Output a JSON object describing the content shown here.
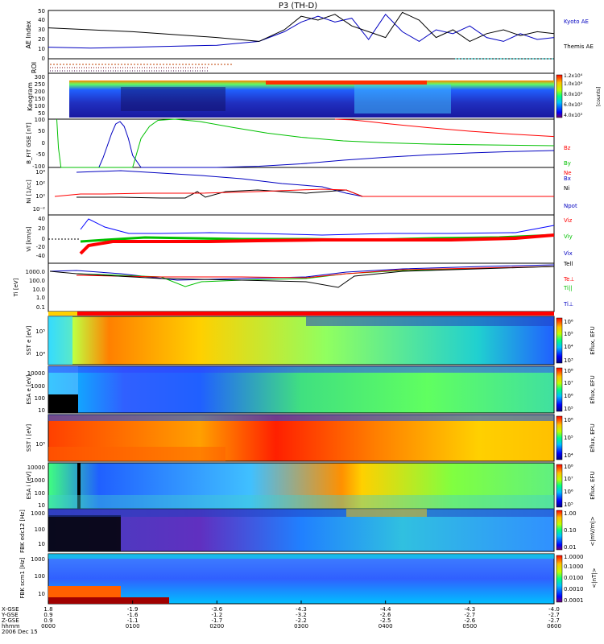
{
  "title": "P3 (TH-D)",
  "colors": {
    "red": "#ff0000",
    "green": "#00c000",
    "blue": "#0000c0",
    "black": "#000000",
    "cyan": "#00c0c0"
  },
  "chart_data": {
    "type": "line",
    "title": "P3 (TH-D)",
    "xticks": [
      "0000",
      "0100",
      "0200",
      "0300",
      "0400",
      "0500",
      "0600"
    ],
    "xrange_hours": [
      0,
      6
    ],
    "footer_rows": {
      "labels": [
        "X-GSE",
        "Y-GSE",
        "Z-GSE",
        "hhmm",
        "2006 Dec 15"
      ],
      "x": [
        "1.8",
        "-1.9",
        "-3.6",
        "-4.3",
        "-4.4",
        "-4.3",
        "-4.0"
      ],
      "y": [
        "0.9",
        "-1.6",
        "-1.2",
        "-3.2",
        "-2.6",
        "-2.7",
        "-2.7"
      ],
      "z": [
        "0.9",
        "-1.1",
        "-1.7",
        "-2.2",
        "-2.5",
        "-2.6",
        "-2.7"
      ]
    },
    "panels": [
      {
        "id": "ae",
        "ylabel": "AE Index",
        "ylim": [
          0,
          50
        ],
        "yticks": [
          "0",
          "10",
          "20",
          "30",
          "40",
          "50"
        ],
        "right_labels": [
          {
            "text": "Kyoto AE",
            "color": "#0000c0"
          },
          {
            "text": "Themis AE",
            "color": "#000000"
          }
        ],
        "series": [
          {
            "name": "Kyoto AE",
            "color": "#0000c0",
            "x": [
              0,
              0.5,
              1,
              1.5,
              2,
              2.5,
              2.8,
              3.0,
              3.2,
              3.4,
              3.6,
              3.8,
              4.0,
              4.2,
              4.4,
              4.6,
              4.8,
              5.0,
              5.2,
              5.4,
              5.6,
              5.8,
              6.0
            ],
            "y": [
              12,
              11,
              12,
              13,
              14,
              18,
              28,
              38,
              44,
              38,
              42,
              20,
              46,
              28,
              18,
              30,
              26,
              34,
              22,
              18,
              26,
              20,
              22
            ]
          },
          {
            "name": "Themis AE",
            "color": "#000000",
            "x": [
              0,
              0.5,
              1,
              1.5,
              2,
              2.5,
              2.8,
              3.0,
              3.2,
              3.4,
              3.6,
              3.8,
              4.0,
              4.2,
              4.4,
              4.6,
              4.8,
              5.0,
              5.2,
              5.4,
              5.6,
              5.8,
              6.0
            ],
            "y": [
              32,
              30,
              28,
              25,
              22,
              18,
              30,
              44,
              40,
              46,
              34,
              28,
              22,
              48,
              40,
              22,
              30,
              18,
              26,
              30,
              24,
              28,
              26
            ]
          }
        ]
      },
      {
        "id": "roi",
        "ylabel": "ROI"
      },
      {
        "id": "keogram",
        "ylabel": "Keogram",
        "ylim": [
          0,
          300
        ],
        "yticks": [
          "50",
          "100",
          "150",
          "200",
          "250",
          "300"
        ],
        "colorbar": {
          "ticks": [
            "4.0x10³",
            "6.0x10³",
            "8.0x10³",
            "1.0x10⁴",
            "1.2x10⁴"
          ],
          "label": "[counts]"
        }
      },
      {
        "id": "bfit",
        "ylabel": "B_FIT GSE [nT]",
        "ylim": [
          -100,
          100
        ],
        "yticks": [
          "-100",
          "-50",
          "0",
          "50",
          "100"
        ],
        "right_labels": [
          {
            "text": "Bz",
            "color": "#ff0000"
          },
          {
            "text": "By",
            "color": "#00c000"
          },
          {
            "text": "Bx",
            "color": "#0000c0"
          }
        ],
        "series": [
          {
            "name": "Bx",
            "color": "#0000c0",
            "x": [
              0.6,
              0.65,
              0.7,
              0.75,
              0.8,
              0.85,
              0.9,
              0.95,
              1.0,
              1.1,
              1.3,
              1.6,
              2.0,
              2.5,
              3.0,
              3.5,
              4.0,
              4.5,
              5.0,
              5.5,
              6.0
            ],
            "y": [
              -100,
              -60,
              -10,
              40,
              80,
              90,
              70,
              20,
              -50,
              -100,
              -100,
              -100,
              -100,
              -95,
              -85,
              -70,
              -58,
              -48,
              -40,
              -34,
              -30
            ]
          },
          {
            "name": "By",
            "color": "#00c000",
            "x": [
              0.1,
              0.12,
              0.15,
              1.0,
              1.05,
              1.1,
              1.2,
              1.3,
              1.5,
              1.8,
              2.2,
              2.6,
              3.0,
              3.5,
              4.0,
              4.5,
              5.0,
              5.5,
              6.0
            ],
            "y": [
              100,
              -20,
              -100,
              -100,
              -40,
              20,
              70,
              95,
              100,
              90,
              65,
              42,
              25,
              10,
              2,
              -3,
              -6,
              -8,
              -10
            ]
          },
          {
            "name": "Bz",
            "color": "#ff0000",
            "x": [
              3.4,
              3.6,
              3.8,
              4.0,
              4.5,
              5.0,
              5.5,
              6.0
            ],
            "y": [
              100,
              97,
              90,
              82,
              65,
              50,
              38,
              28
            ]
          }
        ]
      },
      {
        "id": "ni",
        "ylabel": "Ni [1/cc]",
        "yticks": [
          "10⁻²",
          "10⁰",
          "10²",
          "10⁴"
        ],
        "right_labels": [
          {
            "text": "Ne",
            "color": "#ff0000"
          },
          {
            "text": "Ni",
            "color": "#000000"
          },
          {
            "text": "Npot",
            "color": "#0000c0"
          }
        ]
      },
      {
        "id": "vi",
        "ylabel": "Vi [km/s]",
        "ylim": [
          -50,
          50
        ],
        "yticks": [
          "-40",
          "-20",
          "0",
          "20",
          "40"
        ],
        "right_labels": [
          {
            "text": "Viz",
            "color": "#ff0000"
          },
          {
            "text": "Viy",
            "color": "#00c000"
          },
          {
            "text": "Vix",
            "color": "#0000c0"
          }
        ]
      },
      {
        "id": "ti",
        "ylabel": "Ti [eV]",
        "yticks": [
          "0.1",
          "1.0",
          "10.0",
          "100.0",
          "1000.0"
        ],
        "right_labels": [
          {
            "text": "Tell",
            "color": "#000000"
          },
          {
            "text": "Te⊥",
            "color": "#ff0000"
          },
          {
            "text": "Ti||",
            "color": "#00c000"
          },
          {
            "text": "Ti⊥",
            "color": "#0000c0"
          }
        ]
      },
      {
        "id": "sst_e",
        "ylabel": "SST e [eV]",
        "yticks": [
          "10⁴",
          "10⁵"
        ],
        "colorbar": {
          "ticks": [
            "10³",
            "10⁴",
            "10⁵",
            "10⁶"
          ],
          "label": "Eflux, EFU"
        }
      },
      {
        "id": "esa_e",
        "ylabel": "ESA e [eV]",
        "yticks": [
          "10",
          "100",
          "1000",
          "10000"
        ],
        "colorbar": {
          "ticks": [
            "10⁵",
            "10⁶",
            "10⁷",
            "10⁸"
          ],
          "label": "Eflux, EFU"
        }
      },
      {
        "id": "sst_i",
        "ylabel": "SST i [eV]",
        "yticks": [
          "10⁵"
        ],
        "colorbar": {
          "ticks": [
            "10⁴",
            "10⁵",
            "10⁶"
          ],
          "label": "Eflux, EFU"
        }
      },
      {
        "id": "esa_i",
        "ylabel": "ESA i [eV]",
        "yticks": [
          "10",
          "100",
          "1000",
          "10000"
        ],
        "colorbar": {
          "ticks": [
            "10⁵",
            "10⁶",
            "10⁷",
            "10⁸"
          ],
          "label": "Eflux, EFU"
        }
      },
      {
        "id": "fbk_e",
        "ylabel": "FBK edc12 [Hz]",
        "yticks": [
          "10",
          "100",
          "1000"
        ],
        "colorbar": {
          "ticks": [
            "0.01",
            "0.10",
            "1.00"
          ],
          "label": "<|mV/m|>"
        }
      },
      {
        "id": "fbk_b",
        "ylabel": "FBK scm1 [Hz]",
        "yticks": [
          "10",
          "100",
          "1000"
        ],
        "colorbar": {
          "ticks": [
            "0.0001",
            "0.0010",
            "0.0100",
            "0.1000",
            "1.0000"
          ],
          "label": "<|nT|>"
        }
      }
    ]
  }
}
